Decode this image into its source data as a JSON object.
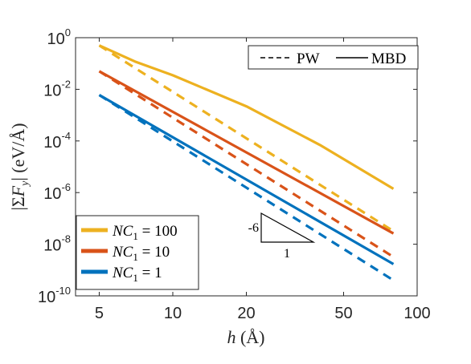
{
  "chart_data": {
    "type": "line",
    "x_scale": "log",
    "y_scale": "log",
    "xlim": [
      4,
      100
    ],
    "ylim": [
      1e-10,
      1
    ],
    "x_ticks": [
      5,
      10,
      20,
      50,
      100
    ],
    "x_tick_labels": [
      "5",
      "10",
      "20",
      "50",
      "100"
    ],
    "y_ticks": [
      {
        "value": 1,
        "base": "10",
        "exp": "0"
      },
      {
        "value": 0.01,
        "base": "10",
        "exp": "-2"
      },
      {
        "value": 0.0001,
        "base": "10",
        "exp": "-4"
      },
      {
        "value": 1e-06,
        "base": "10",
        "exp": "-6"
      },
      {
        "value": 1e-08,
        "base": "10",
        "exp": "-8"
      },
      {
        "value": 1e-10,
        "base": "10",
        "exp": "-10"
      }
    ],
    "xlabel": "h (Å)",
    "ylabel": "|ΣF_y| (eV/Å)",
    "grid": false,
    "series": [
      {
        "group": "NC1 = 100",
        "style": "PW",
        "color": "#EDB120",
        "x": [
          5,
          80
        ],
        "y": [
          0.5,
          3.2e-08
        ]
      },
      {
        "group": "NC1 = 100",
        "style": "MBD",
        "color": "#EDB120",
        "x": [
          5,
          7,
          10,
          20,
          40,
          80
        ],
        "y": [
          0.5,
          0.12,
          0.035,
          0.0022,
          7e-05,
          1.4e-06
        ]
      },
      {
        "group": "NC1 = 10",
        "style": "PW",
        "color": "#D95319",
        "x": [
          5,
          80
        ],
        "y": [
          0.05,
          3.2e-09
        ]
      },
      {
        "group": "NC1 = 10",
        "style": "MBD",
        "color": "#D95319",
        "x": [
          5,
          80
        ],
        "y": [
          0.05,
          2.6e-08
        ]
      },
      {
        "group": "NC1 = 1",
        "style": "PW",
        "color": "#0072BD",
        "x": [
          5,
          80
        ],
        "y": [
          0.006,
          4e-10
        ]
      },
      {
        "group": "NC1 = 1",
        "style": "MBD",
        "color": "#0072BD",
        "x": [
          5,
          80
        ],
        "y": [
          0.006,
          1.7e-09
        ]
      }
    ],
    "color_legend": {
      "placement": "bottom-left",
      "entries": [
        {
          "label_var": "NC",
          "label_sub": "1",
          "label_rest": " = 100",
          "color": "#EDB120"
        },
        {
          "label_var": "NC",
          "label_sub": "1",
          "label_rest": " = 10",
          "color": "#D95319"
        },
        {
          "label_var": "NC",
          "label_sub": "1",
          "label_rest": " = 1",
          "color": "#0072BD"
        }
      ]
    },
    "style_legend": {
      "placement": "top-right",
      "entries": [
        {
          "label": "PW",
          "dash": "dashed"
        },
        {
          "label": "MBD",
          "dash": "solid"
        }
      ]
    },
    "slope_triangle": {
      "rise_label": "-6",
      "run_label": "1"
    }
  }
}
